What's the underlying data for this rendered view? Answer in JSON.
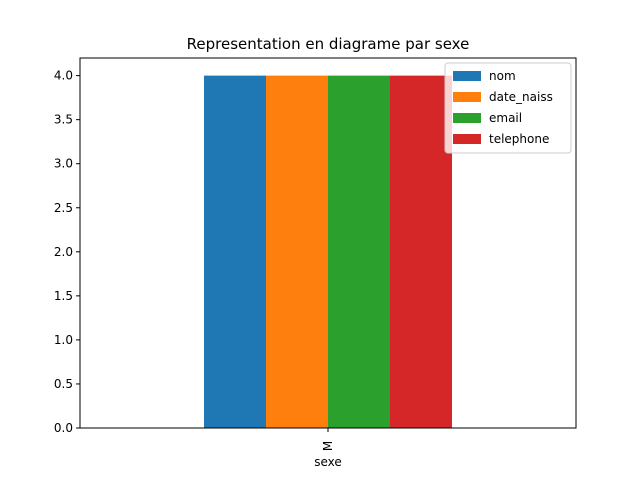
{
  "chart_data": {
    "type": "bar",
    "title": "Representation en diagrame par sexe",
    "xlabel": "sexe",
    "ylabel": "",
    "categories": [
      "M"
    ],
    "series": [
      {
        "name": "nom",
        "values": [
          4
        ],
        "color": "#1f77b4"
      },
      {
        "name": "date_naiss",
        "values": [
          4
        ],
        "color": "#ff7f0e"
      },
      {
        "name": "email",
        "values": [
          4
        ],
        "color": "#2ca02c"
      },
      {
        "name": "telephone",
        "values": [
          4
        ],
        "color": "#d62728"
      }
    ],
    "ylim": [
      0,
      4.2
    ],
    "yticks": [
      "0.0",
      "0.5",
      "1.0",
      "1.5",
      "2.0",
      "2.5",
      "3.0",
      "3.5",
      "4.0"
    ],
    "legend_position": "top-right",
    "grid": false
  }
}
